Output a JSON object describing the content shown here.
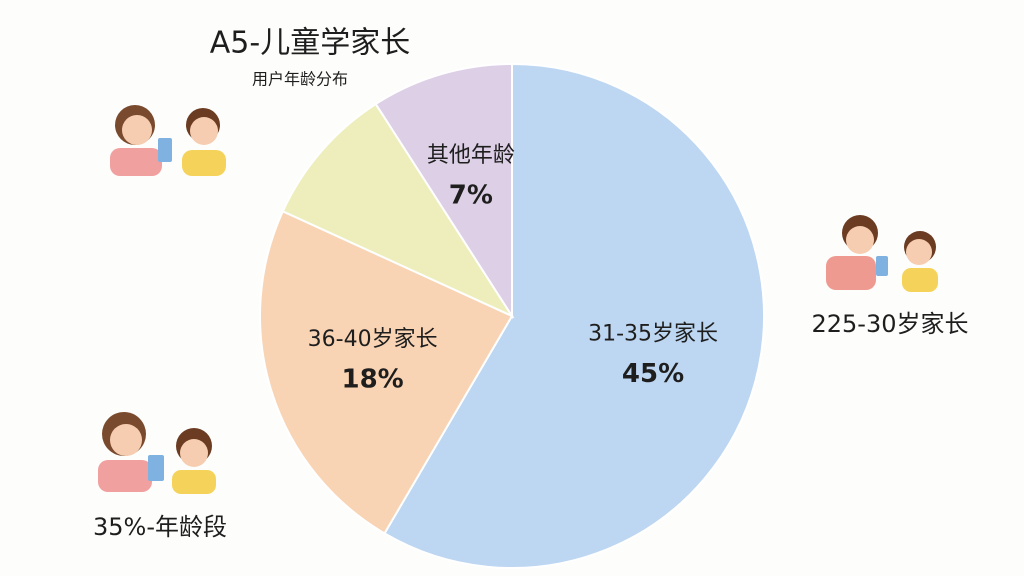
{
  "chart_data": {
    "type": "pie",
    "title": "A5-儿童学家长",
    "subtitle": "用户年龄分布",
    "categories": [
      "31-35岁家长",
      "36-40岁家长",
      null,
      "其他年龄"
    ],
    "values": [
      45,
      18,
      7,
      7
    ],
    "value_labels": [
      "45%",
      "18%",
      null,
      "7%"
    ],
    "colors": [
      "#bdd6f1",
      "#f9d4b4",
      "#eeeebd",
      "#ddd0e6"
    ],
    "annotations": [
      "225-30岁家长",
      "35%-年龄段"
    ]
  }
}
